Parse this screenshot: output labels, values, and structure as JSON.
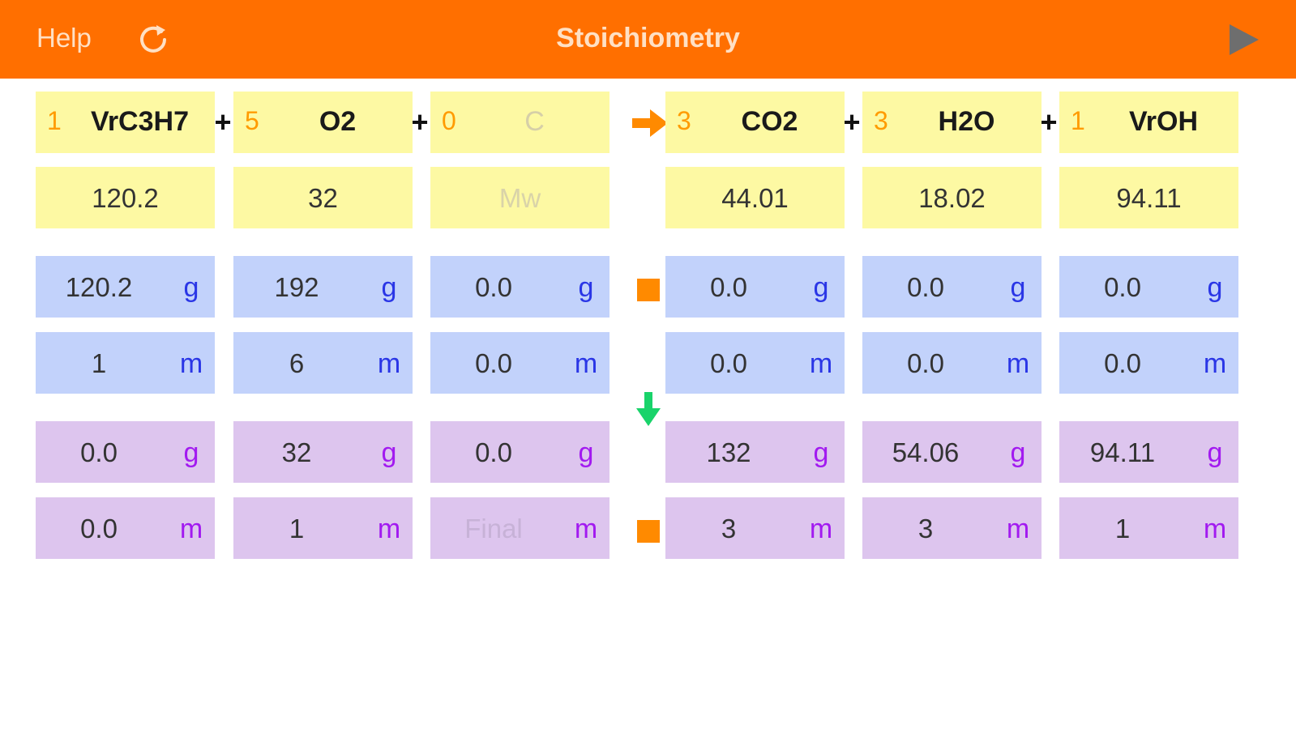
{
  "nav": {
    "help_label": "Help",
    "title": "Stoichiometry",
    "refresh_icon": "refresh-icon",
    "play_icon": "play-icon"
  },
  "colors": {
    "nav_bg": "#ff6f00",
    "coefficient": "#ff9b00",
    "mass_row_bg": "#c2d2fb",
    "final_row_bg": "#ddc5ee",
    "formula_row_bg": "#fdf9a3",
    "mass_unit": "#2a36e6",
    "final_unit": "#a21af0",
    "arrow_down": "#19d36a",
    "square": "#ff8a00"
  },
  "equation": {
    "plus": "+",
    "reactants": [
      {
        "coef": "1",
        "formula": "VrC3H7",
        "mw": "120.2",
        "init_g": "120.2",
        "init_m": "1",
        "final_g": "0.0",
        "final_m": "0.0"
      },
      {
        "coef": "5",
        "formula": "O2",
        "mw": "32",
        "init_g": "192",
        "init_m": "6",
        "final_g": "32",
        "final_m": "1"
      },
      {
        "coef": "0",
        "formula": "C",
        "mw": "Mw",
        "init_g": "0.0",
        "init_m": "0.0",
        "final_g": "0.0",
        "final_m": "Final"
      }
    ],
    "products": [
      {
        "coef": "3",
        "formula": "CO2",
        "mw": "44.01",
        "init_g": "0.0",
        "init_m": "0.0",
        "final_g": "132",
        "final_m": "3"
      },
      {
        "coef": "3",
        "formula": "H2O",
        "mw": "18.02",
        "init_g": "0.0",
        "init_m": "0.0",
        "final_g": "54.06",
        "final_m": "3"
      },
      {
        "coef": "1",
        "formula": "VrOH",
        "mw": "94.11",
        "init_g": "0.0",
        "init_m": "0.0",
        "final_g": "94.11",
        "final_m": "1"
      }
    ]
  },
  "units": {
    "gram": "g",
    "mole": "m"
  }
}
